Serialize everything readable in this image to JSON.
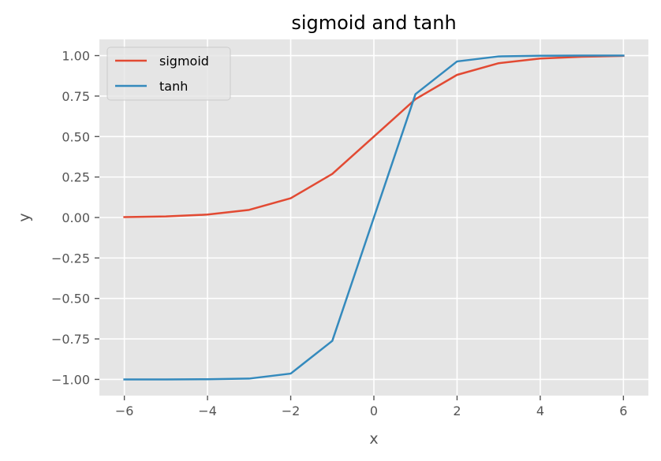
{
  "chart_data": {
    "type": "line",
    "title": "sigmoid and tanh",
    "xlabel": "x",
    "ylabel": "y",
    "xlim": [
      -6.6,
      6.6
    ],
    "ylim": [
      -1.1,
      1.1
    ],
    "xticks": [
      -6,
      -4,
      -2,
      0,
      2,
      4,
      6
    ],
    "xtick_labels": [
      "−6",
      "−4",
      "−2",
      "0",
      "2",
      "4",
      "6"
    ],
    "yticks": [
      -1.0,
      -0.75,
      -0.5,
      -0.25,
      0.0,
      0.25,
      0.5,
      0.75,
      1.0
    ],
    "ytick_labels": [
      "−1.00",
      "−0.75",
      "−0.50",
      "−0.25",
      "0.00",
      "0.25",
      "0.50",
      "0.75",
      "1.00"
    ],
    "grid": true,
    "legend_position": "top-left",
    "x": [
      -6,
      -5,
      -4,
      -3,
      -2,
      -1,
      0,
      1,
      2,
      3,
      4,
      5,
      6
    ],
    "series": [
      {
        "name": "sigmoid",
        "color": "#E24A33",
        "values": [
          0.0025,
          0.0067,
          0.018,
          0.047,
          0.119,
          0.269,
          0.5,
          0.731,
          0.881,
          0.953,
          0.982,
          0.993,
          0.998
        ]
      },
      {
        "name": "tanh",
        "color": "#348ABD",
        "values": [
          -1.0,
          -1.0,
          -0.999,
          -0.995,
          -0.964,
          -0.762,
          0.0,
          0.762,
          0.964,
          0.995,
          0.999,
          1.0,
          1.0
        ]
      }
    ],
    "colors": {
      "plot_background": "#E5E5E5",
      "grid": "#FFFFFF",
      "tick": "#555555",
      "legend_background": "#E5E5E5",
      "legend_border": "#CCCCCC"
    }
  }
}
